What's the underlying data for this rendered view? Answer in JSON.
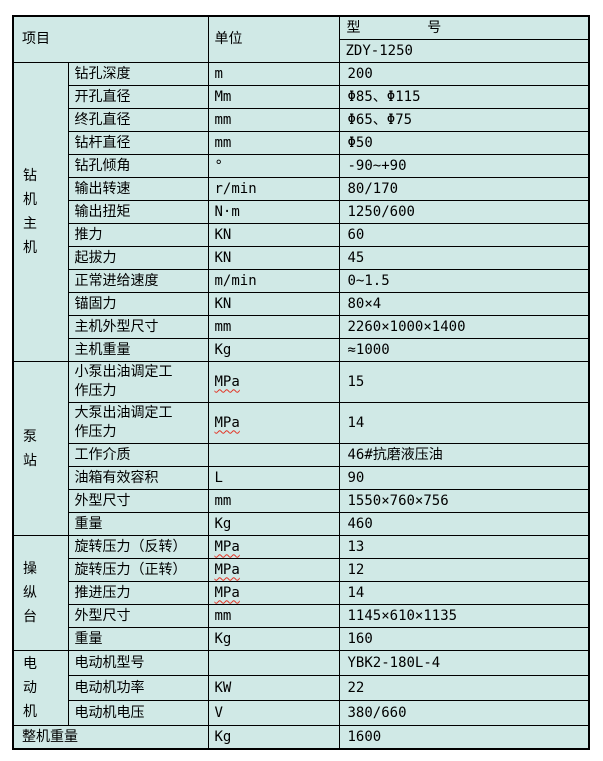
{
  "header": {
    "item": "项目",
    "unit": "单位",
    "model_label": "型               号",
    "model_value": "ZDY-1250"
  },
  "groups": [
    {
      "label": "钻机主机",
      "rows": [
        {
          "item": "钻孔深度",
          "unit": "m",
          "value": "200"
        },
        {
          "item": "开孔直径",
          "unit": "Mm",
          "value": "Φ85、Φ115"
        },
        {
          "item": "终孔直径",
          "unit": "mm",
          "value": "Φ65、Φ75"
        },
        {
          "item": "钻杆直径",
          "unit": "mm",
          "value": "Φ50"
        },
        {
          "item": "钻孔倾角",
          "unit": "°",
          "value": "-90~+90"
        },
        {
          "item": "输出转速",
          "unit": "r/min",
          "value": "80/170"
        },
        {
          "item": "输出扭矩",
          "unit": "N·m",
          "value": "1250/600"
        },
        {
          "item": "推力",
          "unit": "KN",
          "value": "60"
        },
        {
          "item": "起拔力",
          "unit": "KN",
          "value": "45"
        },
        {
          "item": "正常进给速度",
          "unit": "m/min",
          "value": "0~1.5"
        },
        {
          "item": "锚固力",
          "unit": "KN",
          "value": "80×4"
        },
        {
          "item": "主机外型尺寸",
          "unit": "mm",
          "value": "2260×1000×1400"
        },
        {
          "item": "主机重量",
          "unit": "Kg",
          "value": "≈1000"
        }
      ]
    },
    {
      "label": "泵站",
      "rows": [
        {
          "item": "小泵出油调定工\n作压力",
          "unit": "MPa",
          "unit_wavy": true,
          "value": "15"
        },
        {
          "item": "大泵出油调定工\n作压力",
          "unit": "MPa",
          "unit_wavy": true,
          "value": "14"
        },
        {
          "item": "工作介质",
          "unit": "",
          "value": "46#抗磨液压油"
        },
        {
          "item": "油箱有效容积",
          "unit": "L",
          "value": "90"
        },
        {
          "item": "外型尺寸",
          "unit": "mm",
          "value": "1550×760×756"
        },
        {
          "item": "重量",
          "unit": "Kg",
          "value": "460"
        }
      ]
    },
    {
      "label": "操纵台",
      "rows": [
        {
          "item": "旋转压力（反转）",
          "unit": "MPa",
          "unit_wavy": true,
          "value": "13"
        },
        {
          "item": "旋转压力（正转）",
          "unit": "MPa",
          "unit_wavy": true,
          "value": "12"
        },
        {
          "item": "推进压力",
          "unit": "MPa",
          "unit_wavy": true,
          "value": "14"
        },
        {
          "item": "外型尺寸",
          "unit": "mm",
          "value": "1145×610×1135"
        },
        {
          "item": "重量",
          "unit": "Kg",
          "value": "160"
        }
      ]
    },
    {
      "label": "电动机",
      "rows": [
        {
          "item": "电动机型号",
          "unit": "",
          "value": "YBK2-180L-4"
        },
        {
          "item": "电动机功率",
          "unit": "KW",
          "value": "22"
        },
        {
          "item": "电动机电压",
          "unit": "V",
          "value": "380/660"
        }
      ]
    }
  ],
  "total_row": {
    "item": "整机重量",
    "unit": "Kg",
    "value": "1600"
  }
}
